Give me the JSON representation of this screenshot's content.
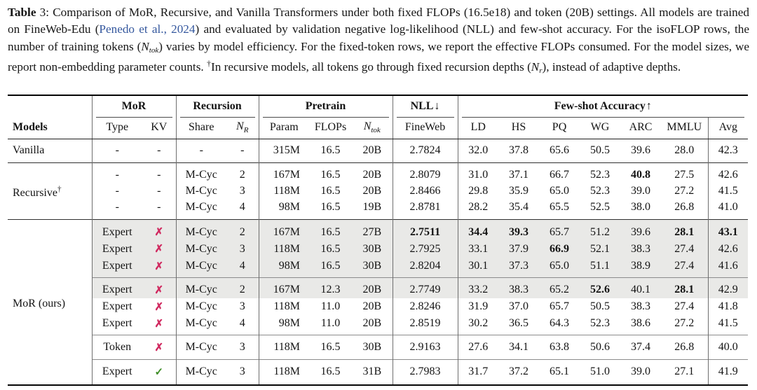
{
  "caption": {
    "label": "Table",
    "num": " 3: ",
    "t1": "Comparison of MoR, Recursive, and Vanilla Transformers under both fixed FLOPs (16.5e18) and token (20B) settings. All models are trained on FineWeb-Edu (",
    "cite": "Penedo et al., 2024",
    "t2": ") and evaluated by validation negative log-likelihood (NLL) and few-shot accuracy. For the isoFLOP rows, the number of training tokens (",
    "m1_base": "N",
    "m1_sub": "tok",
    "t3": ") varies by model efficiency. For the fixed-token rows, we report the effective FLOPs consumed. For the model sizes, we report non-embedding parameter counts. ",
    "dagger": "†",
    "t4": "In recursive models, all tokens go through fixed recursion depths (",
    "m2_base": "N",
    "m2_sub": "r",
    "t5": "), instead of adaptive depths."
  },
  "icons": {
    "cross": "✗",
    "check": "✓"
  },
  "colors": {
    "cross": "#d02a60",
    "check": "#3f8e28",
    "link": "#35589e",
    "row_shade": "#e9e9e7"
  },
  "table": {
    "header": {
      "models": "Models",
      "groups": {
        "mor": "MoR",
        "recursion": "Recursion",
        "pretrain": "Pretrain",
        "nll": "NLL",
        "nll_arrow": "↓",
        "fewshot": "Few-shot Accuracy",
        "fewshot_arrow": "↑"
      },
      "cols": {
        "type": "Type",
        "kv": "KV",
        "share": "Share",
        "nr_base": "N",
        "nr_sub": "R",
        "param": "Param",
        "flops": "FLOPs",
        "ntok_base": "N",
        "ntok_sub": "tok",
        "fineweb": "FineWeb",
        "ld": "LD",
        "hs": "HS",
        "pq": "PQ",
        "wg": "WG",
        "arc": "ARC",
        "mmlu": "MMLU",
        "avg": "Avg"
      }
    },
    "rows": [
      {
        "label": {
          "text": "Vanilla",
          "rowspan": 1
        },
        "shaded": false,
        "rule": "none",
        "cells": [
          "-",
          "-",
          "-",
          "-",
          "315M",
          "16.5",
          "20B",
          "2.7824",
          "32.0",
          "37.8",
          "65.6",
          "50.5",
          "39.6",
          "28.0",
          "42.3"
        ],
        "bold": []
      },
      {
        "label": {
          "text": "Recursive",
          "sup": "†",
          "rowspan": 3
        },
        "shaded": false,
        "rule": "full",
        "cells": [
          "-",
          "-",
          "M-Cyc",
          "2",
          "167M",
          "16.5",
          "20B",
          "2.8079",
          "31.0",
          "37.1",
          "66.7",
          "52.3",
          "40.8",
          "27.5",
          "42.6"
        ],
        "bold": [
          12
        ]
      },
      {
        "shaded": false,
        "rule": "none",
        "cells": [
          "-",
          "-",
          "M-Cyc",
          "3",
          "118M",
          "16.5",
          "20B",
          "2.8466",
          "29.8",
          "35.9",
          "65.0",
          "52.3",
          "39.0",
          "27.2",
          "41.5"
        ],
        "bold": []
      },
      {
        "shaded": false,
        "rule": "none",
        "cells": [
          "-",
          "-",
          "M-Cyc",
          "4",
          "98M",
          "16.5",
          "19B",
          "2.8781",
          "28.2",
          "35.4",
          "65.5",
          "52.5",
          "38.0",
          "26.8",
          "41.0"
        ],
        "bold": []
      },
      {
        "label": {
          "text": "MoR (ours)",
          "rowspan": 8
        },
        "shaded": true,
        "rule": "full",
        "cells": [
          "Expert",
          "cross",
          "M-Cyc",
          "2",
          "167M",
          "16.5",
          "27B",
          "2.7511",
          "34.4",
          "39.3",
          "65.7",
          "51.2",
          "39.6",
          "28.1",
          "43.1"
        ],
        "bold": [
          7,
          8,
          9,
          13,
          14
        ]
      },
      {
        "shaded": true,
        "rule": "none",
        "cells": [
          "Expert",
          "cross",
          "M-Cyc",
          "3",
          "118M",
          "16.5",
          "30B",
          "2.7925",
          "33.1",
          "37.9",
          "66.9",
          "52.1",
          "38.3",
          "27.4",
          "42.6"
        ],
        "bold": [
          10
        ]
      },
      {
        "shaded": true,
        "rule": "none",
        "cells": [
          "Expert",
          "cross",
          "M-Cyc",
          "4",
          "98M",
          "16.5",
          "30B",
          "2.8204",
          "30.1",
          "37.3",
          "65.0",
          "51.1",
          "38.9",
          "27.4",
          "41.6"
        ],
        "bold": []
      },
      {
        "shaded": true,
        "rule": "partial",
        "cells": [
          "Expert",
          "cross",
          "M-Cyc",
          "2",
          "167M",
          "12.3",
          "20B",
          "2.7749",
          "33.2",
          "38.3",
          "65.2",
          "52.6",
          "40.1",
          "28.1",
          "42.9"
        ],
        "bold": [
          11,
          13
        ]
      },
      {
        "shaded": false,
        "rule": "none",
        "cells": [
          "Expert",
          "cross",
          "M-Cyc",
          "3",
          "118M",
          "11.0",
          "20B",
          "2.8246",
          "31.9",
          "37.0",
          "65.7",
          "50.5",
          "38.3",
          "27.4",
          "41.8"
        ],
        "bold": []
      },
      {
        "shaded": false,
        "rule": "none",
        "cells": [
          "Expert",
          "cross",
          "M-Cyc",
          "4",
          "98M",
          "11.0",
          "20B",
          "2.8519",
          "30.2",
          "36.5",
          "64.3",
          "52.3",
          "38.6",
          "27.2",
          "41.5"
        ],
        "bold": []
      },
      {
        "shaded": false,
        "rule": "partial",
        "cells": [
          "Token",
          "cross",
          "M-Cyc",
          "3",
          "118M",
          "16.5",
          "30B",
          "2.9163",
          "27.6",
          "34.1",
          "63.8",
          "50.6",
          "37.4",
          "26.8",
          "40.0"
        ],
        "bold": []
      },
      {
        "shaded": false,
        "rule": "partial",
        "cells": [
          "Expert",
          "check",
          "M-Cyc",
          "3",
          "118M",
          "16.5",
          "31B",
          "2.7983",
          "31.7",
          "37.2",
          "65.1",
          "51.0",
          "39.0",
          "27.1",
          "41.9"
        ],
        "bold": []
      }
    ]
  }
}
